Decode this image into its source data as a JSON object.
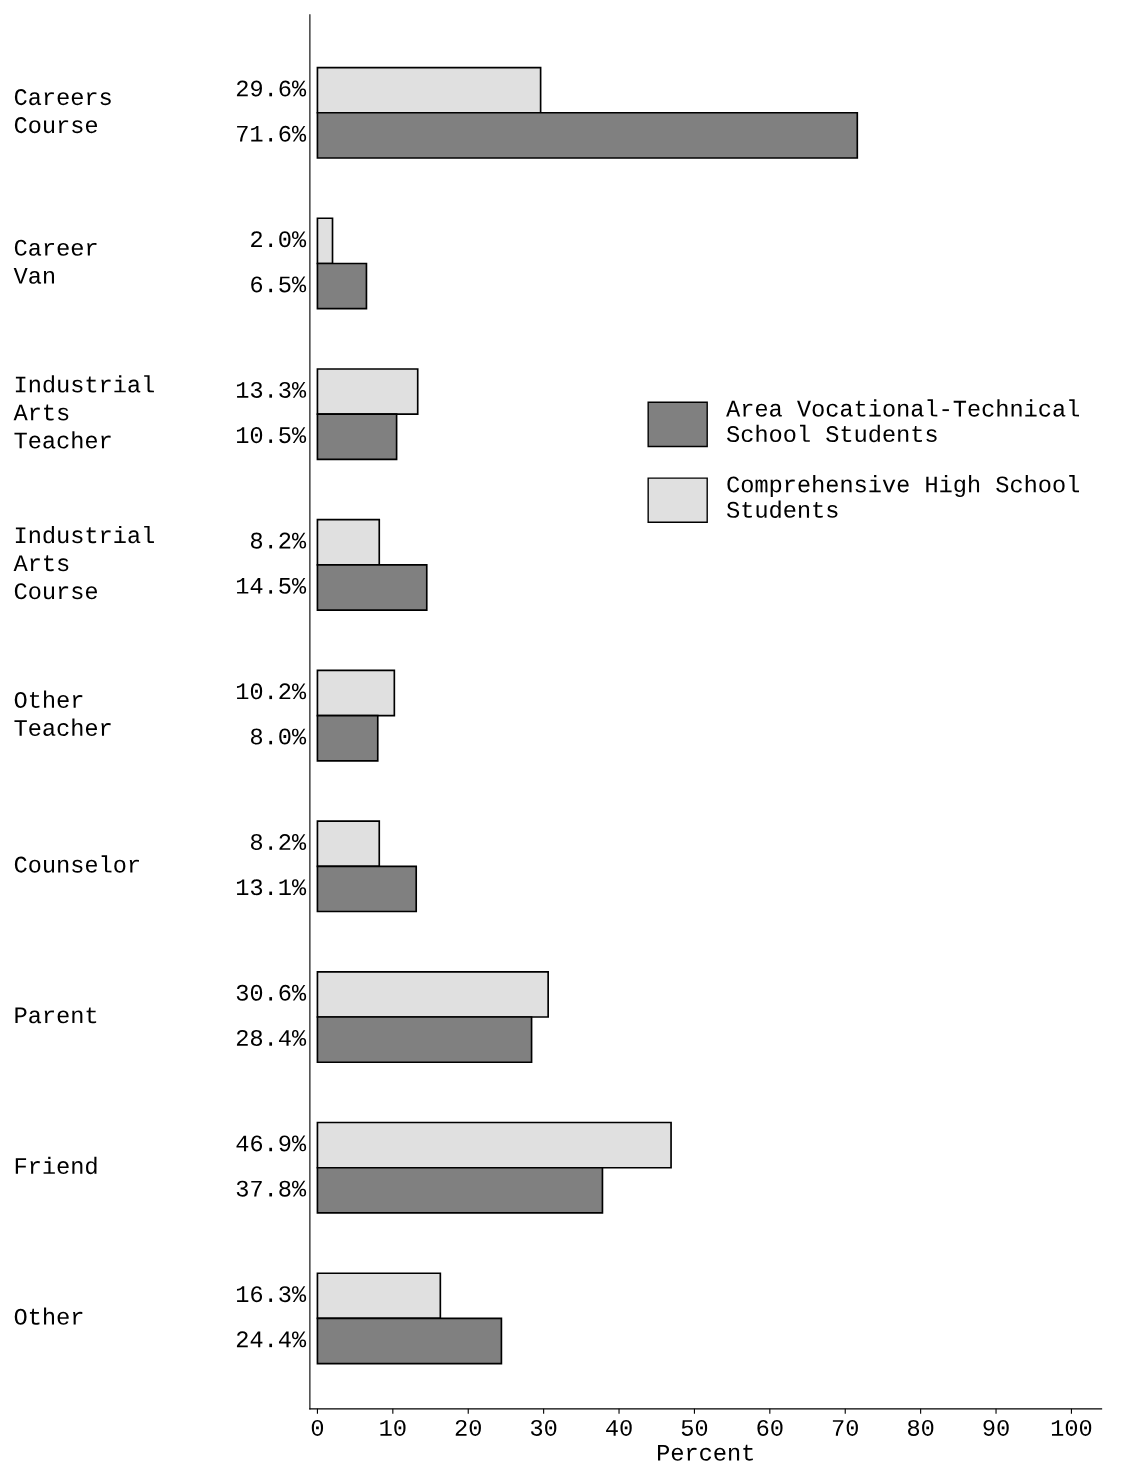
{
  "chart_data": {
    "type": "bar",
    "orientation": "horizontal",
    "xlabel": "Percent",
    "categories": [
      "Careers\nCourse",
      "Career\nVan",
      "Industrial\nArts\nTeacher",
      "Industrial\nArts\nCourse",
      "Other\nTeacher",
      "Counselor",
      "Parent",
      "Friend",
      "Other"
    ],
    "series": [
      {
        "name": "Comprehensive High School\nStudents",
        "color": "#e0e0e0",
        "values": [
          29.6,
          2.0,
          13.3,
          8.2,
          10.2,
          8.2,
          30.6,
          46.9,
          16.3
        ],
        "value_labels": [
          "29.6%",
          "2.0%",
          "13.3%",
          "8.2%",
          "10.2%",
          "8.2%",
          "30.6%",
          "46.9%",
          "16.3%"
        ]
      },
      {
        "name": "Area Vocational-Technical\nSchool Students",
        "color": "#808080",
        "values": [
          71.6,
          6.5,
          10.5,
          14.5,
          8.0,
          13.1,
          28.4,
          37.8,
          24.4
        ],
        "value_labels": [
          "71.6%",
          "6.5%",
          "10.5%",
          "14.5%",
          "8.0%",
          "13.1%",
          "28.4%",
          "37.8%",
          "24.4%"
        ]
      }
    ],
    "xlim": [
      -1,
      104
    ],
    "xticks": [
      0,
      10,
      20,
      30,
      40,
      50,
      60,
      70,
      80,
      90,
      100
    ],
    "grid": false,
    "legend": "right"
  }
}
